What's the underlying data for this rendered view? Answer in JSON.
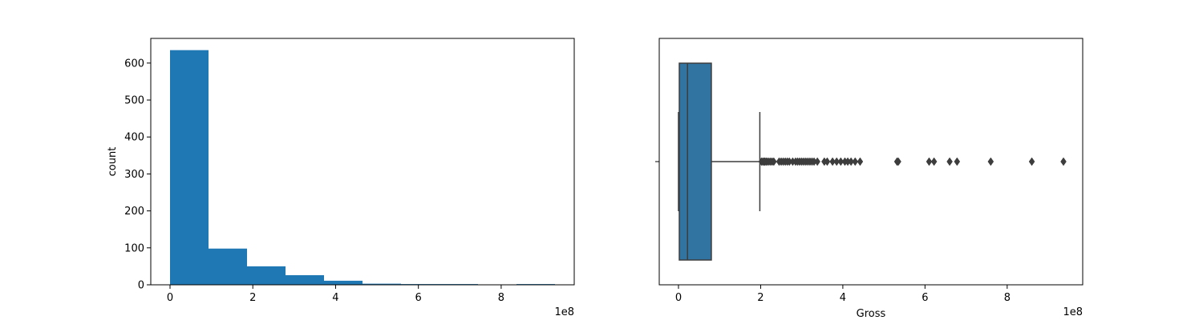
{
  "chart_data": [
    {
      "type": "bar",
      "subtype": "histogram",
      "bin_edges": [
        0,
        0.93,
        1.86,
        2.79,
        3.72,
        4.65,
        5.58,
        6.51,
        7.44,
        8.37,
        9.3
      ],
      "values": [
        635,
        98,
        50,
        26,
        11,
        3,
        2,
        2,
        0,
        2
      ],
      "color": "#1f77b4",
      "xlabel": "",
      "ylabel": "count",
      "xlim": [
        -0.465,
        9.765
      ],
      "ylim": [
        0,
        666.75
      ],
      "xticks": [
        0,
        2,
        4,
        6,
        8
      ],
      "xtick_labels": [
        "0",
        "2",
        "4",
        "6",
        "8"
      ],
      "yticks": [
        0,
        100,
        200,
        300,
        400,
        500,
        600
      ],
      "ytick_labels": [
        "0",
        "100",
        "200",
        "300",
        "400",
        "500",
        "600"
      ],
      "offset_label": "1e8",
      "grid": false
    },
    {
      "type": "box",
      "xlabel": "Gross",
      "ylabel": "",
      "q1": 0.02,
      "median": 0.22,
      "q3": 0.8,
      "whisker_low": 0.0,
      "whisker_high": 1.98,
      "outliers": [
        2.02,
        2.05,
        2.08,
        2.1,
        2.13,
        2.16,
        2.2,
        2.24,
        2.28,
        2.32,
        2.45,
        2.5,
        2.55,
        2.6,
        2.65,
        2.7,
        2.78,
        2.85,
        2.9,
        2.95,
        3.0,
        3.05,
        3.1,
        3.15,
        3.2,
        3.25,
        3.3,
        3.38,
        3.55,
        3.62,
        3.75,
        3.85,
        3.95,
        4.05,
        4.12,
        4.2,
        4.3,
        4.42,
        5.32,
        5.35,
        6.1,
        6.22,
        6.6,
        6.78,
        7.6,
        8.6,
        9.37
      ],
      "box_color": "#3274a1",
      "edge_color": "#3d3d3d",
      "xlim": [
        -0.468,
        9.838
      ],
      "xticks": [
        0,
        2,
        4,
        6,
        8
      ],
      "xtick_labels": [
        "0",
        "2",
        "4",
        "6",
        "8"
      ],
      "offset_label": "1e8",
      "grid": false
    }
  ]
}
